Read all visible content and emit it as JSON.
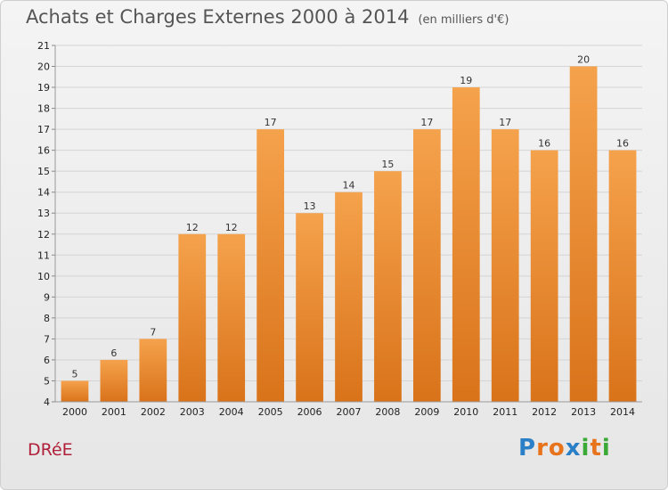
{
  "header": {
    "title": "Achats et Charges Externes 2000 à 2014",
    "subtitle": "(en milliers d'€)"
  },
  "footer": {
    "commune": "DRéE",
    "logo_letters": [
      "P",
      "r",
      "o",
      "x",
      "i",
      "t",
      "i"
    ],
    "logo_colors": [
      "#2a7fc6",
      "#e8731d",
      "#e8731d",
      "#2a7fc6",
      "#3aa935",
      "#e8731d",
      "#3aa935"
    ]
  },
  "chart_data": {
    "type": "bar",
    "title": "Achats et Charges Externes 2000 à 2014",
    "subtitle": "(en milliers d'€)",
    "categories": [
      "2000",
      "2001",
      "2002",
      "2003",
      "2004",
      "2005",
      "2006",
      "2007",
      "2008",
      "2009",
      "2010",
      "2011",
      "2012",
      "2013",
      "2014"
    ],
    "values": [
      5,
      6,
      7,
      12,
      12,
      17,
      13,
      14,
      15,
      17,
      19,
      17,
      16,
      20,
      16
    ],
    "ylim": [
      4,
      21
    ],
    "yticks": [
      4,
      5,
      6,
      7,
      8,
      9,
      10,
      11,
      12,
      13,
      14,
      15,
      16,
      17,
      18,
      19,
      20,
      21
    ],
    "grid": true,
    "bar_color_top": "#f5a24c",
    "bar_color_bottom": "#d9731a",
    "grid_color": "#d4d4d4"
  }
}
